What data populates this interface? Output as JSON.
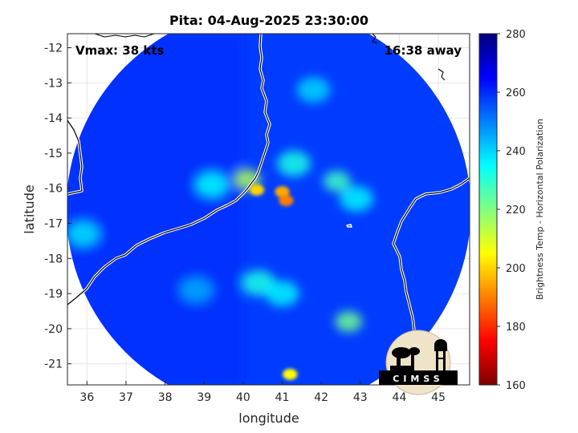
{
  "chart_data": {
    "type": "heatmap",
    "title": "Pita: 04-Aug-2025 23:30:00",
    "xlabel": "longitude",
    "ylabel": "latitude",
    "xlim": [
      35.5,
      45.8
    ],
    "ylim": [
      -21.6,
      -11.6
    ],
    "xticks": [
      36,
      37,
      38,
      39,
      40,
      41,
      42,
      43,
      44,
      45
    ],
    "yticks": [
      -12,
      -13,
      -14,
      -15,
      -16,
      -17,
      -18,
      -19,
      -20,
      -21
    ],
    "grid": true,
    "annotations": {
      "vmax": "Vmax: 38 kts",
      "away": "16:38 away"
    },
    "swath_center": [
      40.65,
      -16.6
    ],
    "colorbar": {
      "label": "Brightness Temp - Horizontal Polarization",
      "min": 160,
      "max": 280,
      "ticks": [
        160,
        180,
        200,
        220,
        240,
        260,
        280
      ],
      "colormap": "jet"
    },
    "background_bt": 258,
    "features": [
      {
        "lon": 41.0,
        "lat": -16.1,
        "bt": 195
      },
      {
        "lon": 41.1,
        "lat": -16.35,
        "bt": 190
      },
      {
        "lon": 40.35,
        "lat": -16.05,
        "bt": 200
      },
      {
        "lon": 40.1,
        "lat": -15.75,
        "bt": 215
      },
      {
        "lon": 41.3,
        "lat": -15.3,
        "bt": 232
      },
      {
        "lon": 42.4,
        "lat": -15.8,
        "bt": 228
      },
      {
        "lon": 42.9,
        "lat": -16.3,
        "bt": 236
      },
      {
        "lon": 39.2,
        "lat": -15.9,
        "bt": 235
      },
      {
        "lon": 40.4,
        "lat": -18.7,
        "bt": 232
      },
      {
        "lon": 41.0,
        "lat": -19.0,
        "bt": 236
      },
      {
        "lon": 42.7,
        "lat": -19.8,
        "bt": 222
      },
      {
        "lon": 41.2,
        "lat": -21.3,
        "bt": 205
      },
      {
        "lon": 41.8,
        "lat": -13.2,
        "bt": 240
      },
      {
        "lon": 35.9,
        "lat": -17.3,
        "bt": 238
      },
      {
        "lon": 38.8,
        "lat": -18.9,
        "bt": 245
      }
    ]
  },
  "logo": {
    "text": "CIMSS"
  }
}
